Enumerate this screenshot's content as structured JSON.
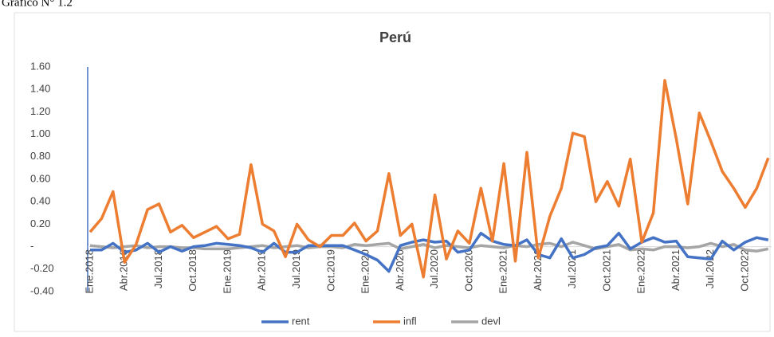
{
  "chart_data": {
    "type": "line",
    "caption": "Gráfico N° 1.2",
    "title": "Perú",
    "categories": [
      "Ene.2018",
      null,
      null,
      "Abr.2018",
      null,
      null,
      "Jul.2018",
      null,
      null,
      "Oct.2018",
      null,
      null,
      "Ene.2019",
      null,
      null,
      "Abr.2019",
      null,
      null,
      "Jul.2019",
      null,
      null,
      "Oct.2019",
      null,
      null,
      "Ene.2020",
      null,
      null,
      "Abr.2020",
      null,
      null,
      "Jul.2020",
      null,
      null,
      "Oct.2020",
      null,
      null,
      "Ene.2021",
      null,
      null,
      "Abr.2021",
      null,
      null,
      "Jul.2021",
      null,
      null,
      "Oct.2021",
      null,
      null,
      "Ene.2022",
      null,
      null,
      "Abr.2021",
      null,
      null,
      "Jul.2022",
      null,
      null,
      "Oct.2022",
      null,
      null
    ],
    "series": [
      {
        "name": "rent",
        "color": "#4472c4",
        "values": [
          -0.03,
          -0.03,
          0.03,
          -0.05,
          -0.03,
          0.03,
          -0.05,
          0.0,
          -0.04,
          0.0,
          0.01,
          0.03,
          0.02,
          0.01,
          -0.01,
          -0.05,
          0.03,
          -0.05,
          -0.05,
          0.01,
          0.01,
          0.01,
          0.01,
          -0.03,
          -0.07,
          -0.12,
          -0.22,
          0.01,
          0.04,
          0.06,
          0.04,
          0.05,
          -0.05,
          -0.03,
          0.12,
          0.05,
          0.02,
          0.01,
          0.06,
          -0.07,
          -0.1,
          0.07,
          -0.1,
          -0.07,
          -0.01,
          0.01,
          0.12,
          -0.02,
          0.04,
          0.08,
          0.04,
          0.05,
          -0.09,
          -0.1,
          -0.11,
          0.05,
          -0.03,
          0.04,
          0.08,
          0.06
        ]
      },
      {
        "name": "infl",
        "color": "#ed7d31",
        "values": [
          0.13,
          0.25,
          0.49,
          -0.14,
          0.02,
          0.33,
          0.38,
          0.13,
          0.19,
          0.08,
          0.13,
          0.18,
          0.07,
          0.11,
          0.73,
          0.2,
          0.14,
          -0.09,
          0.2,
          0.06,
          0.0,
          0.1,
          0.1,
          0.21,
          0.05,
          0.14,
          0.65,
          0.1,
          0.2,
          -0.27,
          0.46,
          -0.11,
          0.14,
          0.03,
          0.52,
          0.05,
          0.74,
          -0.13,
          0.84,
          -0.1,
          0.27,
          0.52,
          1.01,
          0.98,
          0.4,
          0.58,
          0.36,
          0.78,
          0.04,
          0.3,
          1.48,
          0.96,
          0.38,
          1.19,
          0.94,
          0.67,
          0.52,
          0.35,
          0.52,
          0.79
        ]
      },
      {
        "name": "devl",
        "color": "#a5a5a5",
        "values": [
          0.01,
          0.0,
          -0.01,
          0.0,
          0.01,
          -0.01,
          0.0,
          0.0,
          -0.01,
          -0.01,
          -0.02,
          -0.02,
          -0.02,
          -0.01,
          0.0,
          0.01,
          -0.01,
          0.0,
          0.01,
          -0.01,
          0.0,
          0.0,
          -0.01,
          0.02,
          0.01,
          0.02,
          0.03,
          -0.02,
          0.0,
          0.02,
          -0.01,
          0.01,
          0.0,
          -0.01,
          0.01,
          0.0,
          -0.01,
          0.01,
          0.0,
          0.02,
          0.03,
          0.0,
          0.04,
          0.01,
          -0.02,
          0.0,
          0.02,
          -0.03,
          -0.02,
          -0.03,
          0.0,
          0.0,
          -0.01,
          0.0,
          0.03,
          0.0,
          0.02,
          -0.03,
          -0.04,
          -0.02
        ]
      }
    ],
    "ylim": [
      -0.4,
      1.6
    ],
    "yticks": [
      {
        "value": -0.4,
        "label": "-0.40"
      },
      {
        "value": -0.2,
        "label": "-0.20"
      },
      {
        "value": 0,
        "label": "-"
      },
      {
        "value": 0.2,
        "label": "0.20"
      },
      {
        "value": 0.4,
        "label": "0.40"
      },
      {
        "value": 0.6,
        "label": "0.60"
      },
      {
        "value": 0.8,
        "label": "0.80"
      },
      {
        "value": 1.0,
        "label": "1.00"
      },
      {
        "value": 1.2,
        "label": "1.20"
      },
      {
        "value": 1.4,
        "label": "1.40"
      },
      {
        "value": 1.6,
        "label": "1.60"
      }
    ],
    "legend": "bottom"
  }
}
